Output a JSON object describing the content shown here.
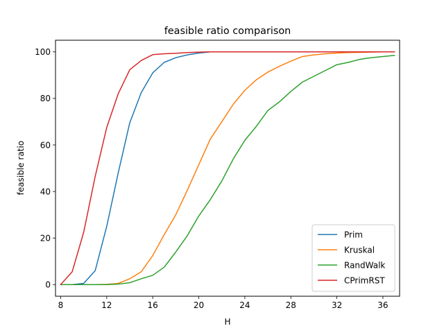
{
  "chart_data": {
    "type": "line",
    "title": "feasible ratio comparison",
    "xlabel": "H",
    "ylabel": "feasible ratio",
    "xlim": [
      7.55,
      37.45
    ],
    "ylim": [
      -5,
      105
    ],
    "xticks": [
      8,
      12,
      16,
      20,
      24,
      28,
      32,
      36
    ],
    "yticks": [
      0,
      20,
      40,
      60,
      80,
      100
    ],
    "grid": false,
    "legend_position": "lower right",
    "x": [
      8,
      9,
      10,
      11,
      12,
      13,
      14,
      15,
      16,
      17,
      18,
      19,
      20,
      21,
      22,
      23,
      24,
      25,
      26,
      27,
      28,
      29,
      30,
      31,
      32,
      33,
      34,
      35,
      36,
      37
    ],
    "series": [
      {
        "name": "Prim",
        "color": "#1f77b4",
        "values": [
          0,
          0,
          0.5,
          6,
          25,
          48,
          69.5,
          82.5,
          91,
          95.5,
          97.5,
          98.7,
          99.5,
          100,
          100,
          100,
          100,
          100,
          100,
          100,
          100,
          100,
          100,
          100,
          100,
          100,
          100,
          100,
          100,
          100
        ]
      },
      {
        "name": "Kruskal",
        "color": "#ff7f0e",
        "values": [
          0,
          0,
          0,
          0,
          0.1,
          0.5,
          2.5,
          5.5,
          12.5,
          21.5,
          30,
          40.5,
          51.5,
          62.5,
          70,
          77.5,
          83.5,
          88,
          91.3,
          93.8,
          96,
          98,
          98.7,
          99.2,
          99.5,
          99.7,
          99.8,
          99.9,
          100,
          100
        ]
      },
      {
        "name": "RandWalk",
        "color": "#2ca02c",
        "values": [
          0,
          0,
          0,
          0,
          0,
          0.2,
          0.8,
          2.5,
          4,
          7.5,
          14,
          21,
          29.5,
          36.5,
          44.5,
          54,
          62,
          68,
          74.8,
          78.5,
          83,
          87,
          89.5,
          92,
          94.5,
          95.5,
          96.8,
          97.5,
          98,
          98.5
        ]
      },
      {
        "name": "CPrimRST",
        "color": "#d62728",
        "values": [
          0,
          5.5,
          22.5,
          46.5,
          67.5,
          82,
          92.3,
          96.3,
          98.8,
          99.2,
          99.4,
          99.7,
          99.9,
          100,
          100,
          100,
          100,
          100,
          100,
          100,
          100,
          100,
          100,
          100,
          100,
          100,
          100,
          100,
          100,
          100
        ]
      }
    ]
  }
}
